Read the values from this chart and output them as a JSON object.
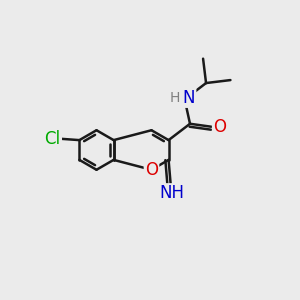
{
  "background_color": "#ebebeb",
  "bond_color": "#1a1a1a",
  "bond_width": 1.8,
  "atom_colors": {
    "O": "#dd0000",
    "N": "#0000cc",
    "Cl": "#00aa00",
    "C": "#1a1a1a",
    "H": "#808080"
  },
  "font_size": 11,
  "fig_size": [
    3.0,
    3.0
  ],
  "dpi": 100
}
